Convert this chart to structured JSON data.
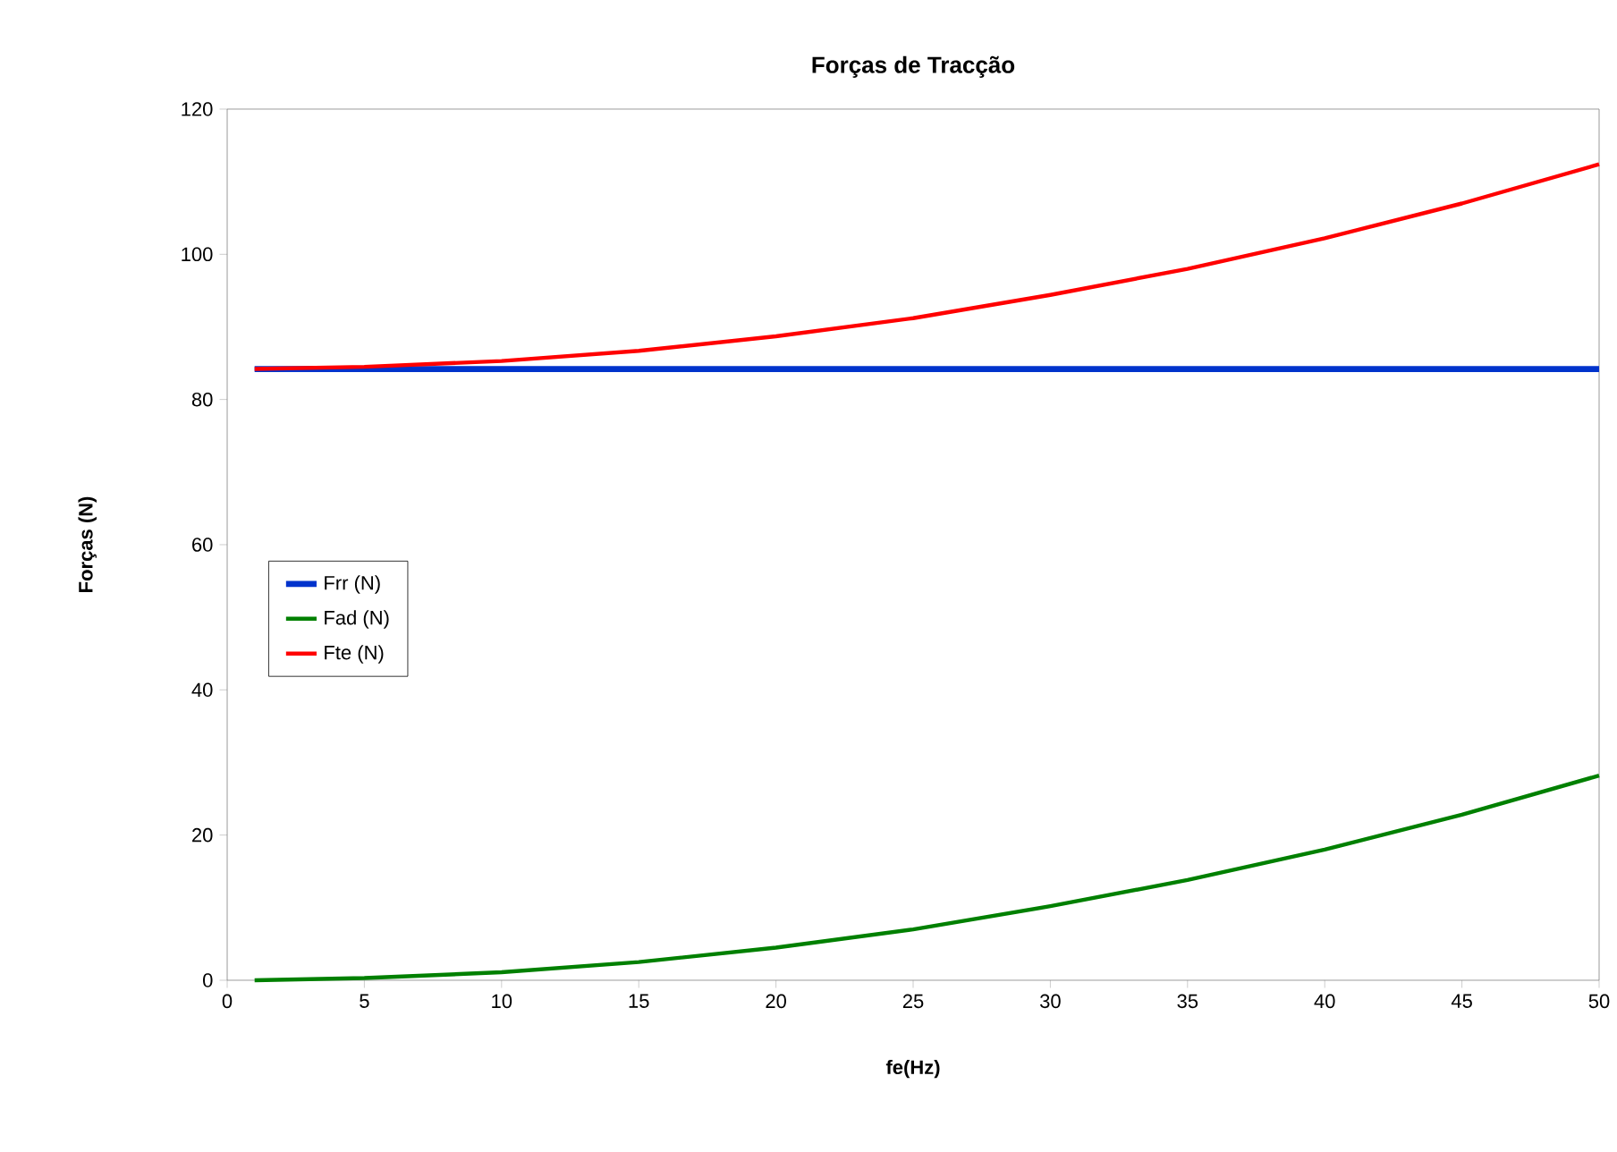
{
  "chart_data": {
    "type": "line",
    "title": "Forças de Tracção",
    "xlabel": "fe(Hz)",
    "ylabel": "Forças (N)",
    "x": [
      1,
      5,
      10,
      15,
      20,
      25,
      30,
      35,
      40,
      45,
      50
    ],
    "series": [
      {
        "name": "Frr (N)",
        "color": "#0033cc",
        "values": [
          84.2,
          84.2,
          84.2,
          84.2,
          84.2,
          84.2,
          84.2,
          84.2,
          84.2,
          84.2,
          84.2
        ]
      },
      {
        "name": "Fad (N)",
        "color": "#008000",
        "values": [
          0.0,
          0.3,
          1.1,
          2.5,
          4.5,
          7.0,
          10.2,
          13.8,
          18.0,
          22.8,
          28.2
        ]
      },
      {
        "name": "Fte (N)",
        "color": "#ff0000",
        "values": [
          84.2,
          84.5,
          85.3,
          86.7,
          88.7,
          91.2,
          94.4,
          98.0,
          102.2,
          107.0,
          112.4
        ]
      }
    ],
    "xlim": [
      0,
      50
    ],
    "xticks": [
      0,
      5,
      10,
      15,
      20,
      25,
      30,
      35,
      40,
      45,
      50
    ],
    "ylim": [
      0,
      120
    ],
    "yticks": [
      0,
      20,
      40,
      60,
      80,
      100,
      120
    ],
    "grid": false,
    "legend": "left",
    "marker": "none",
    "line_style": "solid"
  }
}
